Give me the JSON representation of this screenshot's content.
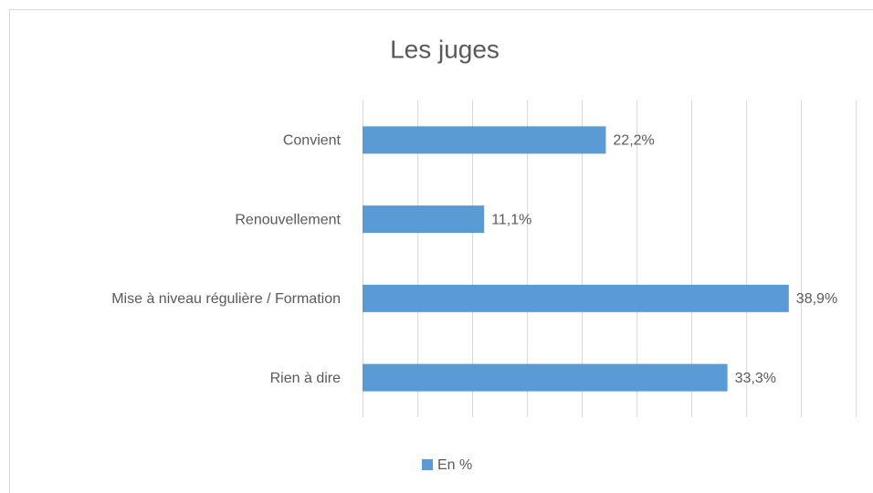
{
  "chart_data": {
    "type": "barh",
    "title": "Les juges",
    "categories": [
      "Convient",
      "Renouvellement",
      "Mise à niveau régulière / Formation",
      "Rien à dire"
    ],
    "series": [
      {
        "name": "En %",
        "color": "#5b9bd5",
        "values": [
          22.2,
          11.1,
          38.9,
          33.3
        ],
        "value_labels": [
          "22,2%",
          "11,1%",
          "38,9%",
          "33,3%"
        ]
      }
    ],
    "xlim": [
      0,
      45
    ],
    "xticks": [
      0,
      5,
      10,
      15,
      20,
      25,
      30,
      35,
      40,
      45
    ],
    "grid": true,
    "legend": "bottom"
  }
}
